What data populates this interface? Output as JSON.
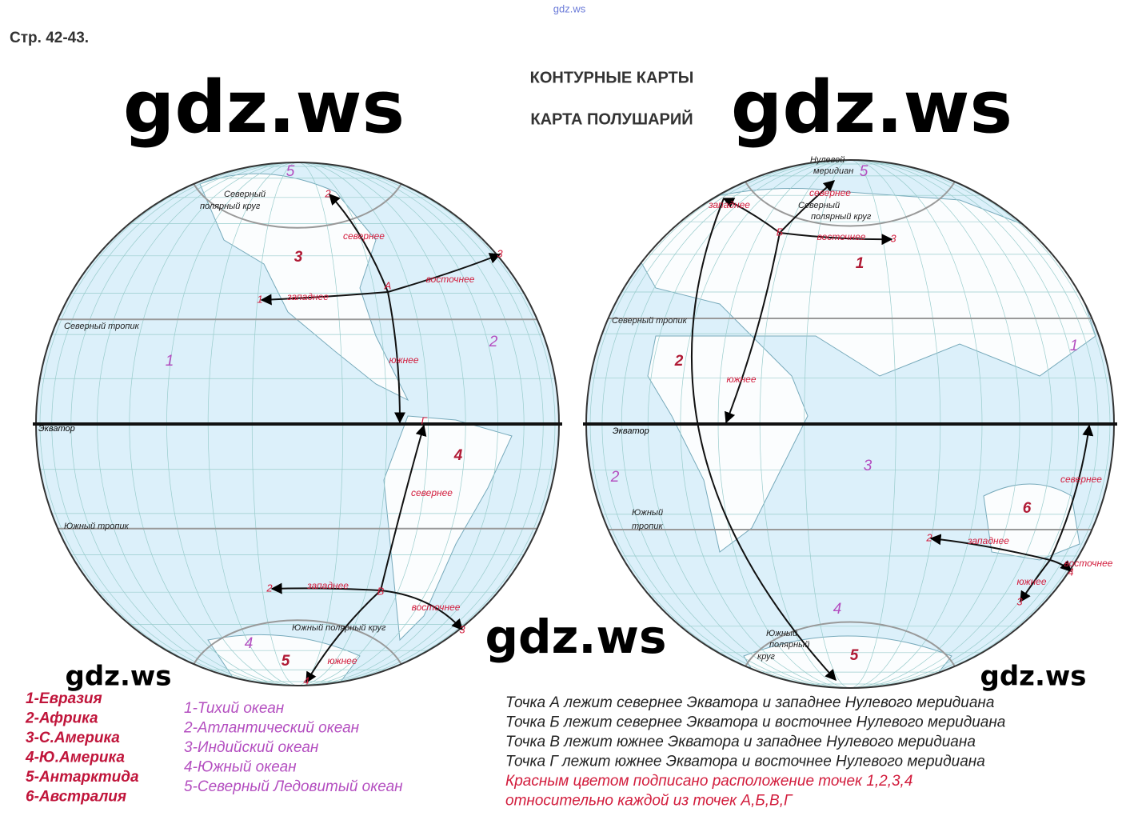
{
  "header": {
    "site": "gdz.ws",
    "page": "Стр. 42-43.",
    "title1": "КОНТУРНЫЕ КАРТЫ",
    "title2": "КАРТА ПОЛУШАРИЙ"
  },
  "watermarks": [
    "gdz.ws",
    "gdz.ws",
    "gdz.ws",
    "gdz.ws",
    "gdz.ws"
  ],
  "western": {
    "labels": [
      "5",
      "Северный",
      "полярный круг",
      "2",
      "севернее",
      "3",
      "3",
      "восточнее",
      "А",
      "1",
      "западнее",
      "Северный тропик",
      "1",
      "2",
      "южнее",
      "Экватор",
      "Г",
      "4",
      "севернее",
      "Южный тропик",
      "2",
      "западнее",
      "В",
      "восточнее",
      "3",
      "Южный полярный круг",
      "4",
      "5",
      "южнее",
      "4"
    ]
  },
  "eastern": {
    "labels": [
      "Нулевой",
      "меридиан",
      "5",
      "севернее",
      "западнее",
      "Северный",
      "полярный круг",
      "Б",
      "восточнее",
      "3",
      "1",
      "Северный тропик",
      "2",
      "1",
      "южнее",
      "Экватор",
      "3",
      "2",
      "севернее",
      "6",
      "Южный",
      "тропик",
      "2",
      "западнее",
      "восточнее",
      "южнее",
      "4",
      "3",
      "4",
      "Южный",
      "полярный",
      "круг",
      "5"
    ]
  },
  "continents": [
    "1-Евразия",
    "2-Африка",
    "3-С.Америка",
    "4-Ю.Америка",
    "5-Антарктида",
    "6-Австралия"
  ],
  "oceans": [
    "1-Тихий океан",
    "2-Атлантический океан",
    "3-Индийский океан",
    "4-Южный океан",
    "5-Северный Ледовитый океан"
  ],
  "statements": [
    "Точка А лежит севернее Экватора и западнее Нулевого меридиана",
    "Точка Б лежит севернее Экватора и восточнее Нулевого меридиана",
    "Точка В лежит южнее Экватора и западнее Нулевого меридиана",
    "Точка Г лежит южнее Экватора и восточнее Нулевого меридиана",
    "Красным цветом подписано расположение точек 1,2,3,4",
    "относительно каждой из точек А,Б,В,Г"
  ]
}
